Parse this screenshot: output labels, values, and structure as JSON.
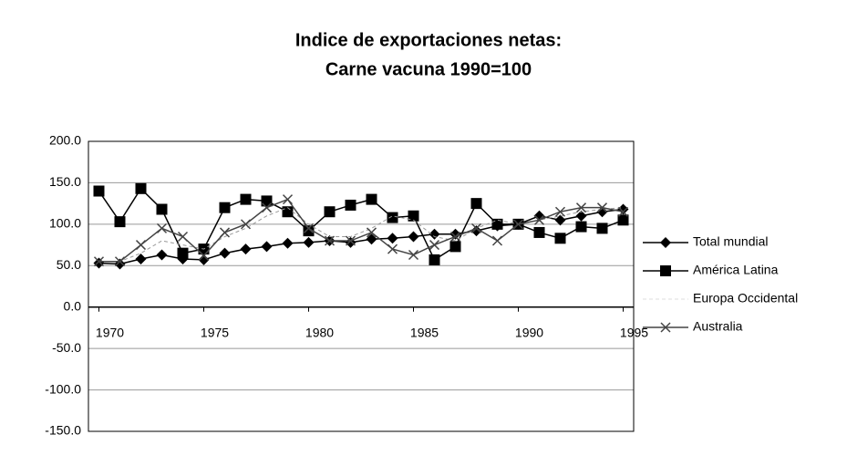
{
  "chart_data": {
    "type": "line",
    "title": [
      "Indice de exportaciones netas:",
      "Carne vacuna 1990=100"
    ],
    "x": [
      1970,
      1971,
      1972,
      1973,
      1974,
      1975,
      1976,
      1977,
      1978,
      1979,
      1980,
      1981,
      1982,
      1983,
      1984,
      1985,
      1986,
      1987,
      1988,
      1989,
      1990,
      1991,
      1992,
      1993,
      1994,
      1995
    ],
    "series": [
      {
        "name": "Total mundial",
        "color": "#000000",
        "marker": "diamond",
        "values": [
          53,
          52,
          58,
          63,
          58,
          57,
          65,
          70,
          73,
          77,
          78,
          80,
          78,
          82,
          83,
          85,
          88,
          88,
          92,
          98,
          100,
          110,
          105,
          110,
          115,
          118
        ]
      },
      {
        "name": "América Latina",
        "color": "#000000",
        "marker": "square",
        "values": [
          140,
          103,
          143,
          118,
          65,
          70,
          120,
          130,
          128,
          115,
          92,
          115,
          123,
          130,
          108,
          110,
          57,
          73,
          125,
          100,
          100,
          90,
          83,
          97,
          95,
          105
        ]
      },
      {
        "name": "Europa Occidental",
        "color": "#999999",
        "marker": "none",
        "dashed": true,
        "values": [
          55,
          55,
          65,
          80,
          75,
          70,
          85,
          95,
          110,
          120,
          100,
          85,
          85,
          95,
          110,
          105,
          85,
          80,
          95,
          105,
          100,
          105,
          110,
          115,
          118,
          120
        ]
      },
      {
        "name": "Australia",
        "color": "#444444",
        "marker": "x",
        "values": [
          55,
          55,
          75,
          95,
          85,
          62,
          90,
          100,
          120,
          130,
          95,
          80,
          80,
          90,
          70,
          63,
          75,
          85,
          95,
          80,
          100,
          105,
          115,
          120,
          120,
          115
        ]
      }
    ],
    "xlim": [
      1969.5,
      1995.5
    ],
    "xticks": [
      1970,
      1975,
      1980,
      1985,
      1990,
      1995
    ],
    "ylim": [
      -150,
      200
    ],
    "yticks": [
      {
        "value": -150,
        "label": "-150.0"
      },
      {
        "value": -100,
        "label": "-100.0"
      },
      {
        "value": -50,
        "label": "-50.0"
      },
      {
        "value": 0,
        "label": "0.0"
      },
      {
        "value": 50,
        "label": "50.0"
      },
      {
        "value": 100,
        "label": "100.0"
      },
      {
        "value": 150,
        "label": "150.0"
      },
      {
        "value": 200,
        "label": "200.0"
      }
    ],
    "grid": true,
    "legend": "right"
  }
}
